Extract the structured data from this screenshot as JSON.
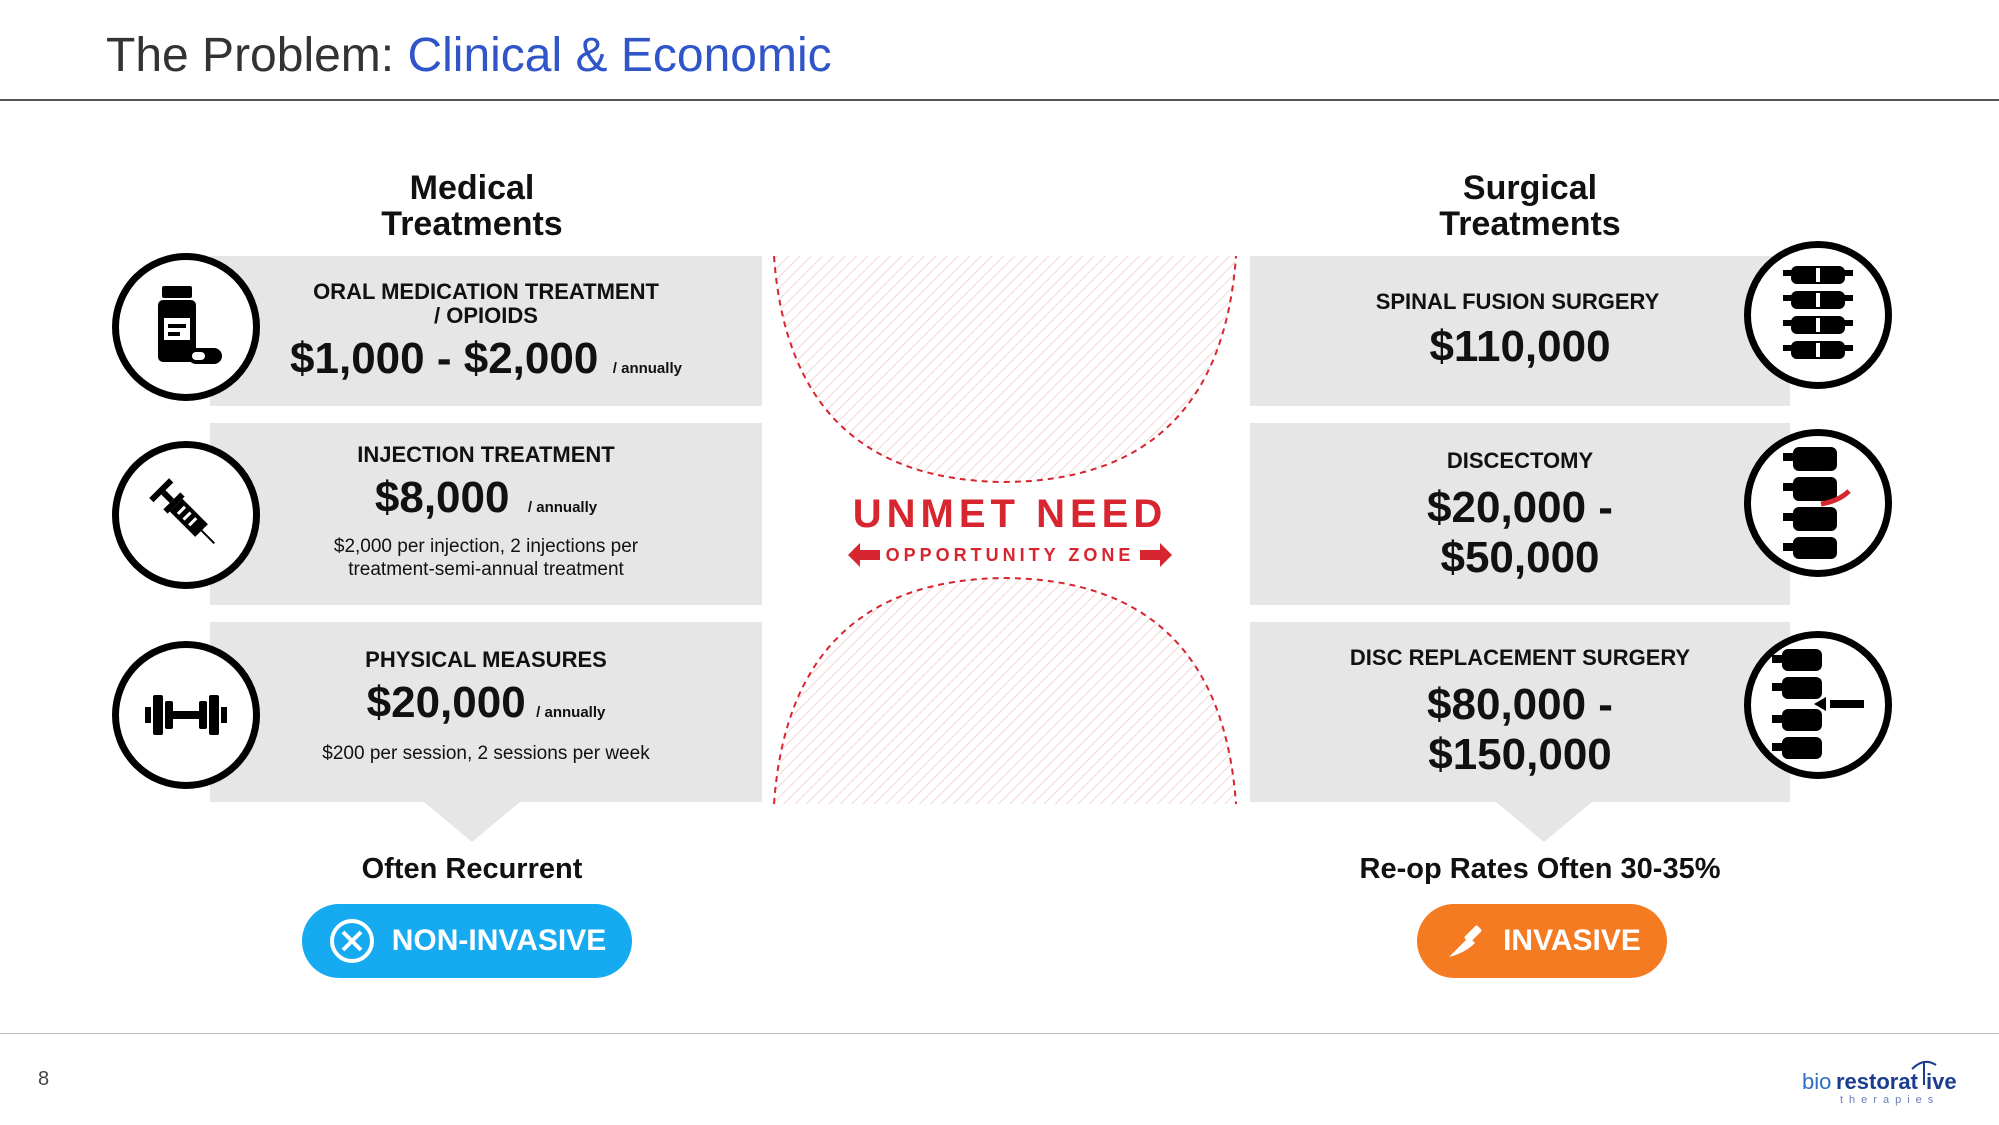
{
  "header": {
    "title_prefix": "The Problem: ",
    "title_accent": "Clinical & Economic"
  },
  "page_number": "8",
  "medical": {
    "heading_line1": "Medical",
    "heading_line2": "Treatments",
    "cards": [
      {
        "title_line1": "ORAL MEDICATION TREATMENT",
        "title_line2": "/ OPIOIDS",
        "price": "$1,000 - $2,000",
        "unit": "/ annually",
        "icon": "pill-bottle-icon"
      },
      {
        "title": "INJECTION TREATMENT",
        "price": "$8,000",
        "unit": "/ annually",
        "note_line1": "$2,000 per injection, 2 injections per",
        "note_line2": "treatment-semi-annual treatment",
        "icon": "syringe-icon"
      },
      {
        "title": "PHYSICAL MEASURES",
        "price": "$20,000",
        "unit": "/ annually",
        "note": "$200 per session, 2 sessions per week",
        "icon": "dumbbell-icon"
      }
    ],
    "footer_label": "Often Recurrent",
    "badge": "NON-INVASIVE",
    "badge_color": "#16aaf0"
  },
  "surgical": {
    "heading_line1": "Surgical",
    "heading_line2": "Treatments",
    "cards": [
      {
        "title": "SPINAL FUSION SURGERY",
        "price": "$110,000",
        "icon": "spine-icon"
      },
      {
        "title": "DISCECTOMY",
        "price_line1": "$20,000 -",
        "price_line2": "$50,000",
        "icon": "herniated-disc-icon"
      },
      {
        "title": "DISC REPLACEMENT SURGERY",
        "price_line1": "$80,000 -",
        "price_line2": "$150,000",
        "icon": "disc-implant-icon"
      }
    ],
    "footer_label": "Re-op Rates Often 30-35%",
    "badge": "INVASIVE",
    "badge_color": "#f47b22"
  },
  "center": {
    "headline": "UNMET NEED",
    "subline": "OPPORTUNITY ZONE",
    "accent": "#d7262f"
  },
  "logo": {
    "text_a": "bio",
    "text_b": "restorative",
    "tagline": "therapies"
  }
}
